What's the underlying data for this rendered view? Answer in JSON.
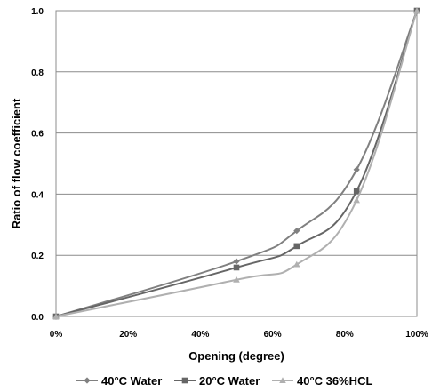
{
  "chart_data": {
    "type": "line",
    "title": "",
    "xlabel": "Opening (degree)",
    "ylabel": "Ratio of flow coefficient",
    "xlim": [
      0,
      100
    ],
    "ylim": [
      0,
      1.0
    ],
    "x_ticks": [
      0,
      20,
      40,
      60,
      80,
      100
    ],
    "x_tick_labels": [
      "0%",
      "20%",
      "40%",
      "60%",
      "80%",
      "100%"
    ],
    "y_ticks": [
      0,
      0.2,
      0.4,
      0.6,
      0.8,
      1.0
    ],
    "y_tick_labels": [
      "0.0",
      "0.2",
      "0.4",
      "0.6",
      "0.8",
      "1.0"
    ],
    "grid": "horizontal",
    "legend_position": "bottom",
    "series": [
      {
        "name": "40°C Water",
        "marker": "diamond",
        "color": "#808080",
        "x": [
          0,
          50,
          66.7,
          83.3,
          100
        ],
        "y": [
          0.0,
          0.18,
          0.28,
          0.48,
          1.0
        ]
      },
      {
        "name": "20°C Water",
        "marker": "square",
        "color": "#666666",
        "x": [
          0,
          50,
          66.7,
          83.3,
          100
        ],
        "y": [
          0.0,
          0.16,
          0.23,
          0.41,
          1.0
        ]
      },
      {
        "name": "40°C 36%HCL",
        "marker": "triangle",
        "color": "#b0b0b0",
        "x": [
          0,
          50,
          66.7,
          83.3,
          100
        ],
        "y": [
          0.0,
          0.12,
          0.17,
          0.38,
          1.0
        ]
      }
    ]
  }
}
